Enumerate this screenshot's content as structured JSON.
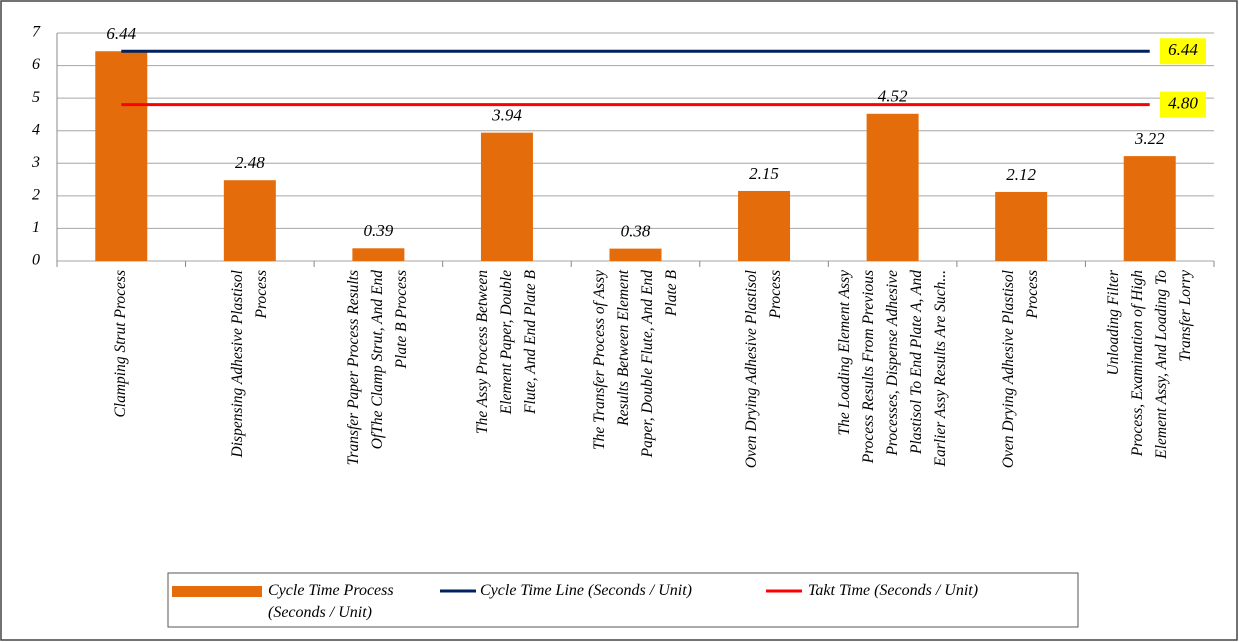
{
  "chart_data": {
    "type": "bar",
    "categories": [
      "Clamping Strut Process",
      "Dispensing Adhesive Plastisol\nProcess",
      "Transfer Paper Process Results\nOfThe Clamp Strut, And End\nPlate B Process",
      "The Assy Process Between\nElement Paper, Double\nFlute, And End Plate B",
      "The Transfer Process of Assy\nResults Between Element\nPaper, Double Flute, And End\nPlate B",
      "Oven Drying Adhesive Plastisol\nProcess",
      "The Loading Element Assy\nProcess Results From Previous\nProcesses, Dispense Adhesive\nPlastisol To End Plate A, And\nEarlier Assy Results Are Such...",
      "Oven Drying Adhesive Plastisol\nProcess",
      "Unloading Filter\nProcess, Examination of High\nElement Assy, And Loading To\nTransfer Lorry"
    ],
    "series": [
      {
        "name": "Cycle Time Process\n(Seconds / Unit)",
        "type": "bar",
        "color": "#e46c0a",
        "values": [
          6.44,
          2.48,
          0.39,
          3.94,
          0.38,
          2.15,
          4.52,
          2.12,
          3.22
        ]
      },
      {
        "name": "Cycle Time Line (Seconds / Unit)",
        "type": "line",
        "color": "#002060",
        "values": [
          6.44,
          6.44,
          6.44,
          6.44,
          6.44,
          6.44,
          6.44,
          6.44,
          6.44
        ],
        "end_label": "6.44"
      },
      {
        "name": "Takt Time (Seconds / Unit)",
        "type": "line",
        "color": "#ff0000",
        "values": [
          4.8,
          4.8,
          4.8,
          4.8,
          4.8,
          4.8,
          4.8,
          4.8,
          4.8
        ],
        "end_label": "4.80"
      }
    ],
    "ylim": [
      0,
      7
    ],
    "yticks": [
      0,
      1,
      2,
      3,
      4,
      5,
      6,
      7
    ],
    "grid": true,
    "legend": "bottom"
  }
}
